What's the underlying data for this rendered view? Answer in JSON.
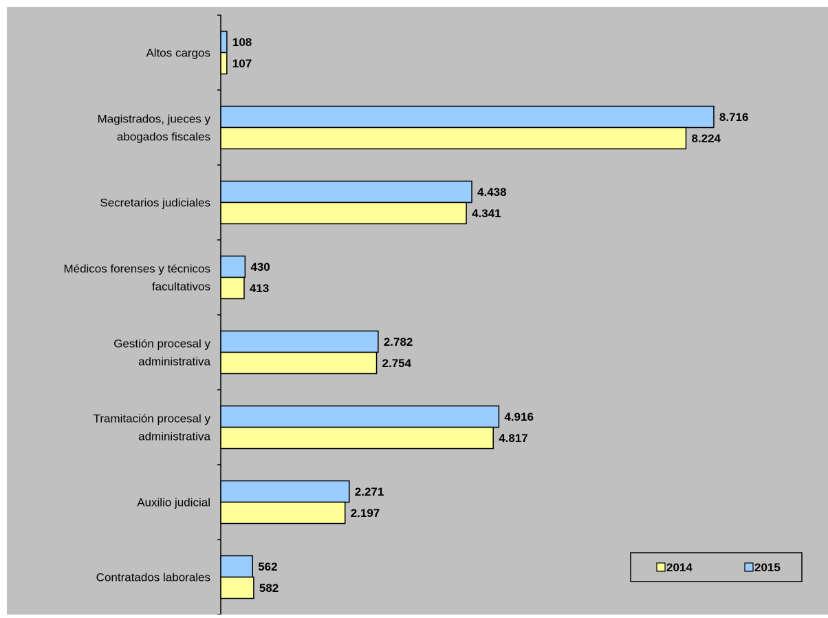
{
  "chart_data": {
    "type": "bar",
    "orientation": "horizontal",
    "categories": [
      [
        "Altos cargos"
      ],
      [
        "Magistrados, jueces y",
        "abogados fiscales"
      ],
      [
        "Secretarios judiciales"
      ],
      [
        "Médicos forenses y técnicos",
        "facultativos"
      ],
      [
        "Gestión procesal y",
        "administrativa"
      ],
      [
        "Tramitación procesal y",
        "administrativa"
      ],
      [
        "Auxilio judicial"
      ],
      [
        "Contratados laborales"
      ]
    ],
    "series": [
      {
        "name": "2015",
        "color": "#99ccff",
        "values": [
          108,
          8716,
          4438,
          430,
          2782,
          4916,
          2271,
          562
        ],
        "labels": [
          "108",
          "8.716",
          "4.438",
          "430",
          "2.782",
          "4.916",
          "2.271",
          "562"
        ]
      },
      {
        "name": "2014",
        "color": "#ffff99",
        "values": [
          107,
          8224,
          4341,
          413,
          2754,
          4817,
          2197,
          582
        ],
        "labels": [
          "107",
          "8.224",
          "4.341",
          "413",
          "2.754",
          "4.817",
          "2.197",
          "582"
        ]
      }
    ],
    "legend": {
      "position": "bottom-right",
      "order": [
        "2014",
        "2015"
      ]
    },
    "xlim": [
      0,
      10200
    ],
    "plot_background": "#c0c0c0",
    "page_background": "#ffffff",
    "grid": false,
    "title": "",
    "xlabel": "",
    "ylabel": ""
  }
}
